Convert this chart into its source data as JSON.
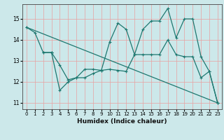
{
  "title": "",
  "xlabel": "Humidex (Indice chaleur)",
  "xlim": [
    -0.5,
    23.5
  ],
  "ylim": [
    10.7,
    15.7
  ],
  "yticks": [
    11,
    12,
    13,
    14,
    15
  ],
  "xticks": [
    0,
    1,
    2,
    3,
    4,
    5,
    6,
    7,
    8,
    9,
    10,
    11,
    12,
    13,
    14,
    15,
    16,
    17,
    18,
    19,
    20,
    21,
    22,
    23
  ],
  "bg_color": "#cce8ea",
  "line_color": "#1e7870",
  "grid_color": "#e8a0a0",
  "lines": [
    {
      "x": [
        0,
        1,
        2,
        3
      ],
      "y": [
        14.6,
        14.35,
        13.4,
        13.4
      ]
    },
    {
      "x": [
        2,
        3,
        4,
        5,
        6,
        7,
        8,
        9,
        10,
        11,
        12,
        13,
        14,
        15,
        16,
        17,
        18,
        19,
        20,
        21,
        22,
        23
      ],
      "y": [
        13.4,
        13.4,
        11.6,
        12.0,
        12.2,
        12.2,
        12.4,
        12.55,
        12.6,
        12.55,
        12.5,
        13.3,
        13.3,
        13.3,
        13.3,
        14.0,
        13.3,
        13.2,
        13.2,
        12.2,
        12.5,
        11.0
      ]
    },
    {
      "x": [
        3,
        4,
        5,
        6,
        7,
        8,
        9,
        10,
        11,
        12,
        13,
        14,
        15,
        16,
        17,
        18,
        19,
        20,
        21,
        22,
        23
      ],
      "y": [
        13.4,
        12.8,
        12.1,
        12.2,
        12.6,
        12.6,
        12.55,
        13.9,
        14.8,
        14.5,
        13.3,
        14.5,
        14.9,
        14.9,
        15.5,
        14.1,
        15.0,
        15.0,
        13.2,
        12.5,
        11.0
      ]
    },
    {
      "x": [
        0,
        23
      ],
      "y": [
        14.6,
        11.0
      ]
    }
  ]
}
